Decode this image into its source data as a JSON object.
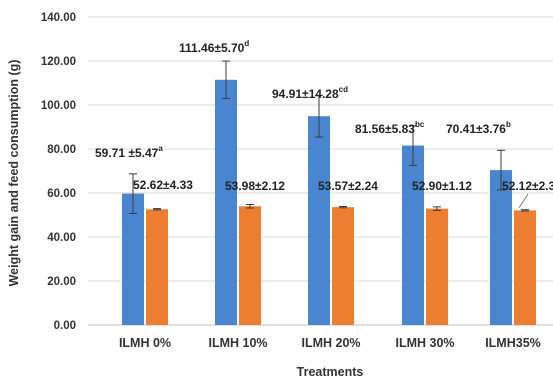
{
  "chart_data": {
    "type": "bar",
    "xlabel": "Treatments",
    "ylabel": "Weight gain and feed consumption (g)",
    "ylim": [
      0,
      140
    ],
    "yticks": [
      "0.00",
      "20.00",
      "40.00",
      "60.00",
      "80.00",
      "100.00",
      "120.00",
      "140.00"
    ],
    "ytick_values": [
      0,
      20,
      40,
      60,
      80,
      100,
      120,
      140
    ],
    "grid": true,
    "categories": [
      "ILMH 0%",
      "ILMH 10%",
      "ILMH 20%",
      "ILMH 30%",
      "ILMH35%"
    ],
    "series": [
      {
        "color": "#4a86cf",
        "values": [
          59.71,
          111.46,
          94.91,
          81.56,
          70.41
        ],
        "errors": [
          9.0,
          8.5,
          9.5,
          9.0,
          9.0
        ],
        "labels": [
          {
            "text": "59.71  ±5.47",
            "sup": "a"
          },
          {
            "text": "111.46±5.70",
            "sup": "d"
          },
          {
            "text": "94.91±14.28",
            "sup": "cd"
          },
          {
            "text": "81.56±5.83",
            "sup": "bc"
          },
          {
            "text": "70.41±3.76",
            "sup": "b"
          }
        ]
      },
      {
        "color": "#ed7d31",
        "values": [
          52.62,
          53.98,
          53.57,
          52.9,
          52.12
        ],
        "errors": [
          0.3,
          0.8,
          0.3,
          0.8,
          0.3
        ],
        "labels": [
          {
            "text": "52.62±4.33",
            "sup": ""
          },
          {
            "text": "53.98±2.12",
            "sup": ""
          },
          {
            "text": "53.57±2.24",
            "sup": ""
          },
          {
            "text": "52.90±1.12",
            "sup": ""
          },
          {
            "text": "52.12±2.3",
            "sup": ""
          }
        ]
      }
    ]
  }
}
